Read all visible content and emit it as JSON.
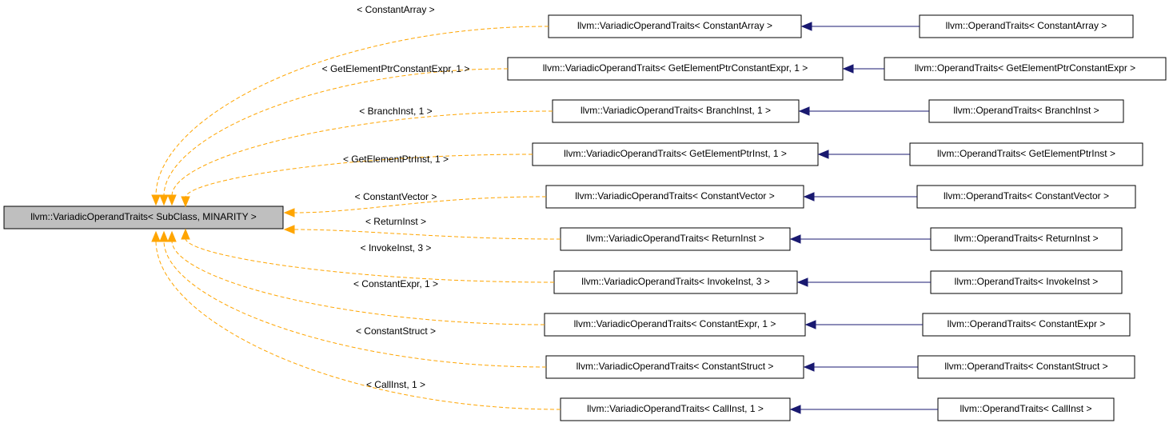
{
  "root": {
    "label": "llvm::VariadicOperandTraits< SubClass, MINARITY >"
  },
  "children": [
    {
      "edge_label": "< ConstantArray >",
      "label": "llvm::VariadicOperandTraits< ConstantArray >",
      "subclass": "llvm::OperandTraits< ConstantArray >"
    },
    {
      "edge_label": "< GetElementPtrConstantExpr, 1 >",
      "label": "llvm::VariadicOperandTraits< GetElementPtrConstantExpr, 1 >",
      "subclass": "llvm::OperandTraits< GetElementPtrConstantExpr >"
    },
    {
      "edge_label": "< BranchInst, 1 >",
      "label": "llvm::VariadicOperandTraits< BranchInst, 1 >",
      "subclass": "llvm::OperandTraits< BranchInst >"
    },
    {
      "edge_label": "< GetElementPtrInst, 1 >",
      "label": "llvm::VariadicOperandTraits< GetElementPtrInst, 1 >",
      "subclass": "llvm::OperandTraits< GetElementPtrInst >"
    },
    {
      "edge_label": "< ConstantVector >",
      "label": "llvm::VariadicOperandTraits< ConstantVector >",
      "subclass": "llvm::OperandTraits< ConstantVector >"
    },
    {
      "edge_label": "< ReturnInst >",
      "label": "llvm::VariadicOperandTraits< ReturnInst >",
      "subclass": "llvm::OperandTraits< ReturnInst >"
    },
    {
      "edge_label": "< InvokeInst, 3 >",
      "label": "llvm::VariadicOperandTraits< InvokeInst, 3 >",
      "subclass": "llvm::OperandTraits< InvokeInst >"
    },
    {
      "edge_label": "< ConstantExpr, 1 >",
      "label": "llvm::VariadicOperandTraits< ConstantExpr, 1 >",
      "subclass": "llvm::OperandTraits< ConstantExpr >"
    },
    {
      "edge_label": "< ConstantStruct >",
      "label": "llvm::VariadicOperandTraits< ConstantStruct >",
      "subclass": "llvm::OperandTraits< ConstantStruct >"
    },
    {
      "edge_label": "< CallInst, 1 >",
      "label": "llvm::VariadicOperandTraits< CallInst, 1 >",
      "subclass": "llvm::OperandTraits< CallInst >"
    }
  ]
}
